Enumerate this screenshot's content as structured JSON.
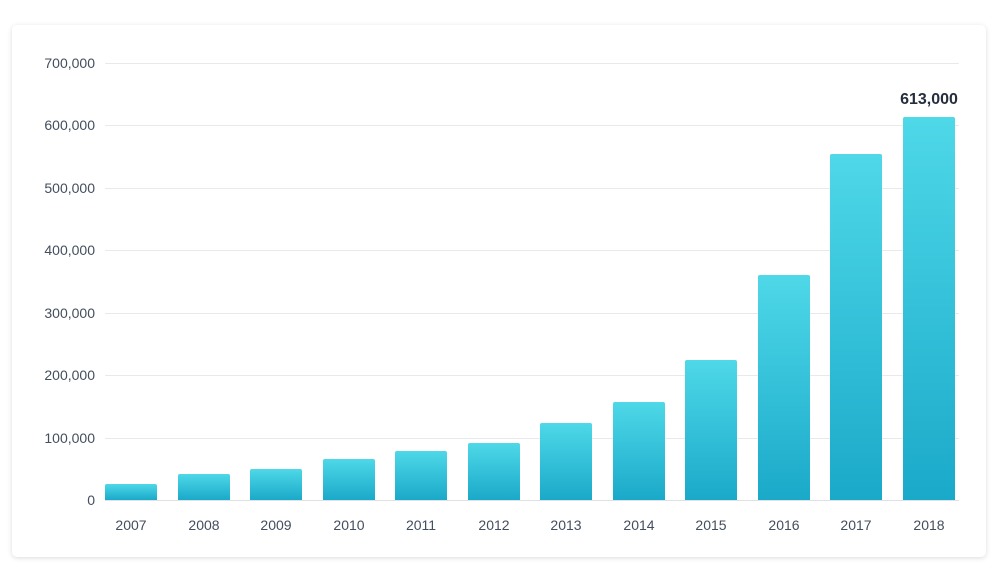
{
  "chart_data": {
    "type": "bar",
    "title": "",
    "xlabel": "",
    "ylabel": "",
    "categories": [
      "2007",
      "2008",
      "2009",
      "2010",
      "2011",
      "2012",
      "2013",
      "2014",
      "2015",
      "2016",
      "2017",
      "2018"
    ],
    "values": [
      25000,
      42000,
      50000,
      65000,
      79000,
      92000,
      124000,
      157000,
      225000,
      361000,
      555000,
      613000
    ],
    "ylim": [
      0,
      700000
    ],
    "yticks": [
      {
        "value": 0,
        "label": "0"
      },
      {
        "value": 100000,
        "label": "100,000"
      },
      {
        "value": 200000,
        "label": "200,000"
      },
      {
        "value": 300000,
        "label": "300,000"
      },
      {
        "value": 400000,
        "label": "400,000"
      },
      {
        "value": 500000,
        "label": "500,000"
      },
      {
        "value": 600000,
        "label": "600,000"
      },
      {
        "value": 700000,
        "label": "700,000"
      }
    ],
    "grid": true,
    "legend": false,
    "annotation": {
      "index": 11,
      "text": "613,000"
    },
    "colors": {
      "bar_top": "#4ed8e8",
      "bar_bottom": "#1aa9c9",
      "gridline": "#e8e9eb",
      "baseline": "#dfe1e4",
      "axis_text": "#434e5e",
      "annotation_text": "#242e3c",
      "card_background": "#ffffff"
    }
  }
}
